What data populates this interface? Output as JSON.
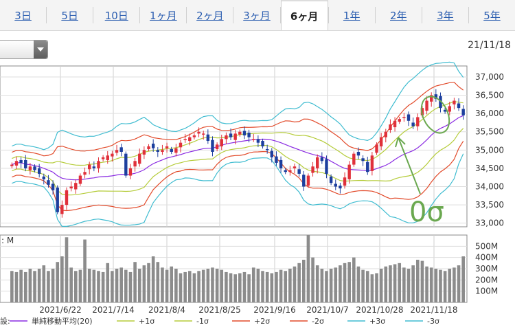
{
  "tabs": [
    {
      "label": "3日",
      "active": false
    },
    {
      "label": "5日",
      "active": false
    },
    {
      "label": "10日",
      "active": false
    },
    {
      "label": "1ヶ月",
      "active": false
    },
    {
      "label": "2ヶ月",
      "active": false
    },
    {
      "label": "3ヶ月",
      "active": false
    },
    {
      "label": "6ヶ月",
      "active": true
    },
    {
      "label": "1年",
      "active": false
    },
    {
      "label": "2年",
      "active": false
    },
    {
      "label": "3年",
      "active": false
    },
    {
      "label": "5年",
      "active": false
    }
  ],
  "date_label": "21/11/18",
  "annotation": "0σ",
  "volume_unit_label": ": M",
  "legend_prefix": "設:",
  "colors": {
    "up": "#e0303a",
    "down": "#1d3f9e",
    "sma": "#8a2be2",
    "s1": "#b5cc3a",
    "s2": "#e24a2a",
    "s3": "#3fbcd0",
    "volume": "#8c8c8c",
    "annot": "#6aa84f"
  },
  "chart_data": {
    "type": "candlestick",
    "price_axis": {
      "ticks": [
        33000,
        33500,
        34000,
        34500,
        35000,
        35500,
        36000,
        36500,
        37000
      ],
      "ylim": [
        32900,
        37300
      ]
    },
    "volume_axis": {
      "ticks": [
        100,
        200,
        300,
        400,
        500
      ],
      "tick_labels": [
        "100M",
        "200M",
        "300M",
        "400M",
        "500M"
      ],
      "ylim": [
        0,
        600
      ]
    },
    "x_labels": [
      "2021/6/22",
      "2021/7/14",
      "2021/8/4",
      "2021/8/25",
      "2021/9/16",
      "2021/10/7",
      "2021/10/28",
      "2021/11/18"
    ],
    "legend": [
      "単純移動平均(20)",
      "+1σ",
      "-1σ",
      "+2σ",
      "-2σ",
      "+3σ",
      "-3σ"
    ],
    "close": [
      34600,
      34700,
      34650,
      34500,
      34550,
      34450,
      34350,
      34200,
      34050,
      33900,
      33300,
      33500,
      33900,
      34000,
      34100,
      34300,
      34400,
      34600,
      34500,
      34700,
      34800,
      34850,
      34900,
      35000,
      34950,
      34300,
      34500,
      34700,
      34900,
      35000,
      35100,
      35050,
      34950,
      35000,
      35100,
      34950,
      35050,
      35200,
      35300,
      35350,
      35400,
      35500,
      35450,
      35250,
      34950,
      35150,
      35300,
      35400,
      35350,
      35450,
      35500,
      35400,
      35350,
      35300,
      35200,
      35100,
      35000,
      34800,
      34650,
      34500,
      34400,
      34450,
      34550,
      34350,
      34000,
      34300,
      34550,
      34800,
      34700,
      34350,
      34100,
      34000,
      33950,
      34250,
      34600,
      34900,
      34850,
      34700,
      34400,
      34850,
      35150,
      35350,
      35500,
      35700,
      35800,
      35850,
      35900,
      35800,
      35650,
      35900,
      36150,
      36350,
      36500,
      36400,
      36150,
      36050,
      36200,
      36350,
      36150,
      35950
    ],
    "volume": [
      280,
      270,
      290,
      270,
      300,
      280,
      300,
      330,
      280,
      300,
      360,
      410,
      580,
      310,
      280,
      290,
      560,
      300,
      290,
      280,
      270,
      350,
      280,
      300,
      310,
      290,
      270,
      360,
      300,
      330,
      350,
      410,
      360,
      310,
      290,
      320,
      300,
      260,
      270,
      280,
      260,
      280,
      290,
      300,
      310,
      300,
      290,
      270,
      260,
      250,
      260,
      270,
      250,
      310,
      300,
      280,
      270,
      260,
      270,
      290,
      280,
      300,
      320,
      350,
      380,
      600,
      400,
      330,
      300,
      280,
      300,
      310,
      330,
      350,
      360,
      400,
      320,
      290,
      280,
      250,
      260,
      300,
      320,
      330,
      340,
      350,
      310,
      300,
      330,
      380,
      370,
      320,
      310,
      300,
      290,
      280,
      300,
      310,
      330,
      410
    ]
  }
}
